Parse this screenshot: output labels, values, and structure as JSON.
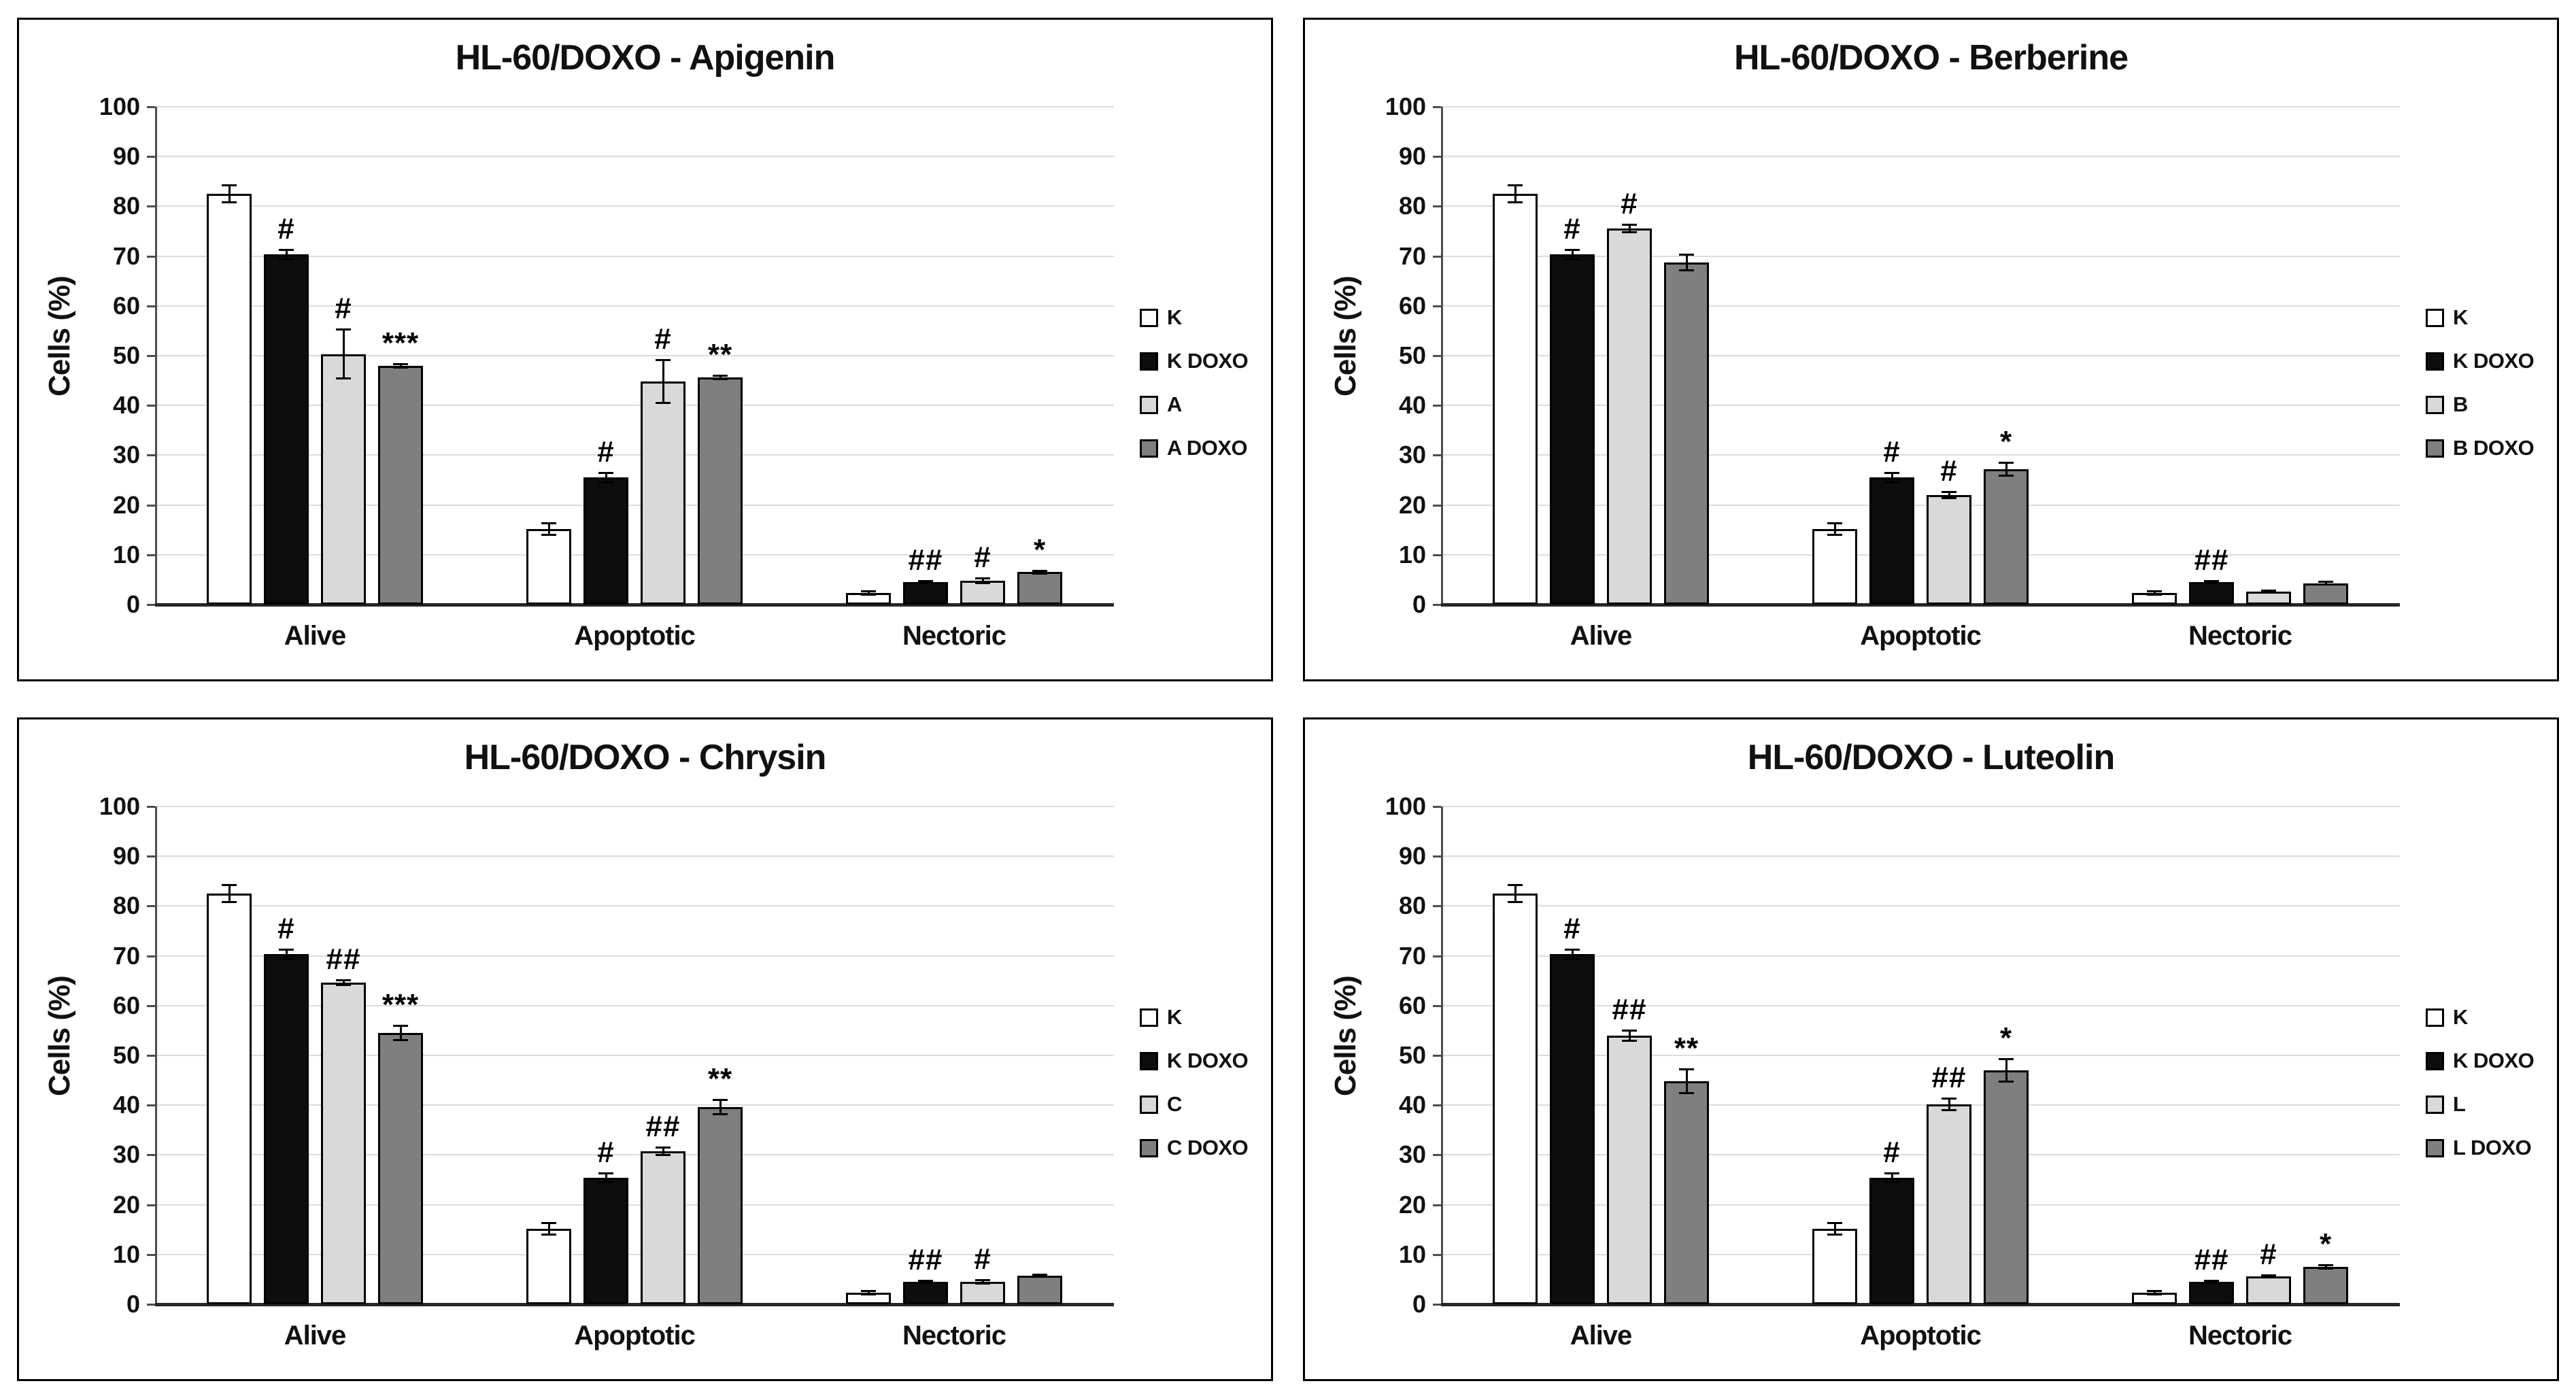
{
  "page": {
    "background": "#ffffff",
    "panel_border": "#000000",
    "gridline_color": "#dcdcdc",
    "axis_color": "#4d4d4d"
  },
  "chart_data": [
    {
      "type": "bar",
      "title": "HL-60/DOXO - Apigenin",
      "xlabel": "",
      "ylabel": "Cells (%)",
      "ylim": [
        0,
        100
      ],
      "ytick_step": 10,
      "grid": true,
      "legend_position": "right",
      "categories": [
        "Alive",
        "Apoptotic",
        "Nectoric"
      ],
      "series": [
        {
          "name": "K",
          "color": "#FFFFFF",
          "values": [
            82.5,
            15.2,
            2.3
          ],
          "errors": [
            1.8,
            1.2,
            0.4
          ],
          "annotations": [
            "",
            "",
            ""
          ]
        },
        {
          "name": "K DOXO",
          "color": "#0D0D0D",
          "values": [
            70.3,
            25.5,
            4.5
          ],
          "errors": [
            1.0,
            1.0,
            0.3
          ],
          "annotations": [
            "#",
            "#",
            "##"
          ]
        },
        {
          "name": "A",
          "color": "#D9D9D9",
          "values": [
            50.3,
            44.8,
            4.8
          ],
          "errors": [
            5.0,
            4.4,
            0.5
          ],
          "annotations": [
            "#",
            "#",
            "#"
          ]
        },
        {
          "name": "A DOXO",
          "color": "#7F7F7F",
          "values": [
            48.0,
            45.6,
            6.5
          ],
          "errors": [
            0.4,
            0.4,
            0.3
          ],
          "annotations": [
            "***",
            "**",
            "*"
          ]
        }
      ]
    },
    {
      "type": "bar",
      "title": "HL-60/DOXO - Berberine",
      "xlabel": "",
      "ylabel": "Cells (%)",
      "ylim": [
        0,
        100
      ],
      "ytick_step": 10,
      "grid": true,
      "legend_position": "right",
      "categories": [
        "Alive",
        "Apoptotic",
        "Nectoric"
      ],
      "series": [
        {
          "name": "K",
          "color": "#FFFFFF",
          "values": [
            82.5,
            15.2,
            2.3
          ],
          "errors": [
            1.8,
            1.2,
            0.4
          ],
          "annotations": [
            "",
            "",
            ""
          ]
        },
        {
          "name": "K DOXO",
          "color": "#0D0D0D",
          "values": [
            70.3,
            25.5,
            4.5
          ],
          "errors": [
            1.0,
            1.0,
            0.3
          ],
          "annotations": [
            "#",
            "#",
            "##"
          ]
        },
        {
          "name": "B",
          "color": "#D9D9D9",
          "values": [
            75.5,
            22.0,
            2.6
          ],
          "errors": [
            0.8,
            0.7,
            0.3
          ],
          "annotations": [
            "#",
            "#",
            ""
          ]
        },
        {
          "name": "B DOXO",
          "color": "#7F7F7F",
          "values": [
            68.7,
            27.2,
            4.3
          ],
          "errors": [
            1.6,
            1.4,
            0.3
          ],
          "annotations": [
            "",
            "*",
            ""
          ]
        }
      ]
    },
    {
      "type": "bar",
      "title": "HL-60/DOXO - Chrysin",
      "xlabel": "",
      "ylabel": "Cells (%)",
      "ylim": [
        0,
        100
      ],
      "ytick_step": 10,
      "grid": true,
      "legend_position": "right",
      "categories": [
        "Alive",
        "Apoptotic",
        "Nectoric"
      ],
      "series": [
        {
          "name": "K",
          "color": "#FFFFFF",
          "values": [
            82.5,
            15.2,
            2.3
          ],
          "errors": [
            1.8,
            1.2,
            0.4
          ],
          "annotations": [
            "",
            "",
            ""
          ]
        },
        {
          "name": "K DOXO",
          "color": "#0D0D0D",
          "values": [
            70.3,
            25.4,
            4.5
          ],
          "errors": [
            1.0,
            1.0,
            0.3
          ],
          "annotations": [
            "#",
            "#",
            "##"
          ]
        },
        {
          "name": "C",
          "color": "#D9D9D9",
          "values": [
            64.6,
            30.7,
            4.5
          ],
          "errors": [
            0.5,
            0.8,
            0.4
          ],
          "annotations": [
            "##",
            "##",
            "#"
          ]
        },
        {
          "name": "C DOXO",
          "color": "#7F7F7F",
          "values": [
            54.5,
            39.6,
            5.7
          ],
          "errors": [
            1.5,
            1.5,
            0.3
          ],
          "annotations": [
            "***",
            "**",
            ""
          ]
        }
      ]
    },
    {
      "type": "bar",
      "title": "HL-60/DOXO - Luteolin",
      "xlabel": "",
      "ylabel": "Cells (%)",
      "ylim": [
        0,
        100
      ],
      "ytick_step": 10,
      "grid": true,
      "legend_position": "right",
      "categories": [
        "Alive",
        "Apoptotic",
        "Nectoric"
      ],
      "series": [
        {
          "name": "K",
          "color": "#FFFFFF",
          "values": [
            82.5,
            15.2,
            2.3
          ],
          "errors": [
            1.8,
            1.2,
            0.4
          ],
          "annotations": [
            "",
            "",
            ""
          ]
        },
        {
          "name": "K DOXO",
          "color": "#0D0D0D",
          "values": [
            70.3,
            25.4,
            4.5
          ],
          "errors": [
            1.0,
            1.0,
            0.3
          ],
          "annotations": [
            "#",
            "#",
            "##"
          ]
        },
        {
          "name": "L",
          "color": "#D9D9D9",
          "values": [
            54.0,
            40.2,
            5.6
          ],
          "errors": [
            1.1,
            1.2,
            0.3
          ],
          "annotations": [
            "##",
            "##",
            "#"
          ]
        },
        {
          "name": "L DOXO",
          "color": "#7F7F7F",
          "values": [
            44.8,
            47.0,
            7.5
          ],
          "errors": [
            2.4,
            2.3,
            0.4
          ],
          "annotations": [
            "**",
            "*",
            "*"
          ]
        }
      ]
    }
  ]
}
